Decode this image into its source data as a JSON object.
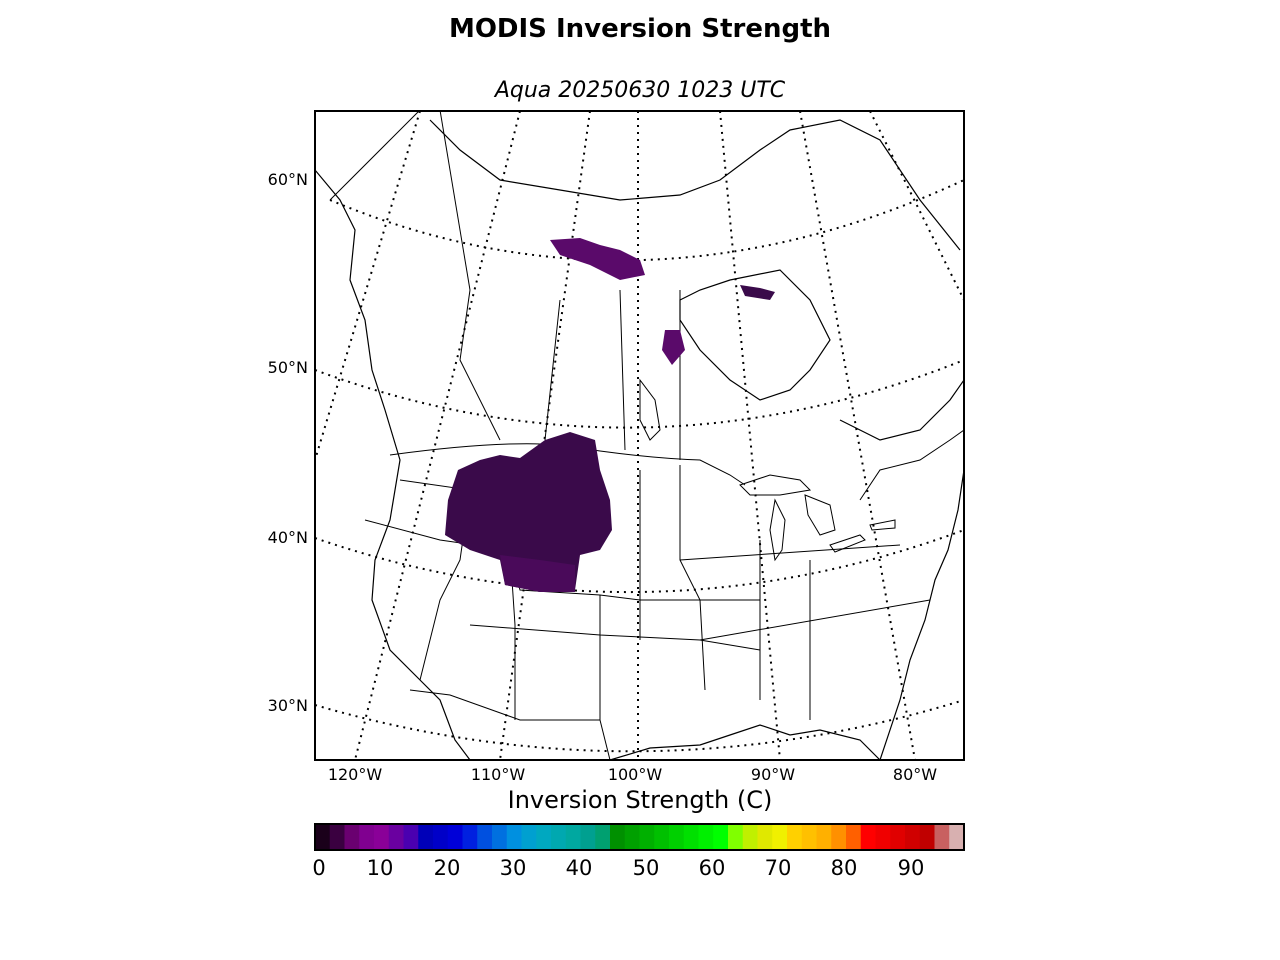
{
  "title": "MODIS Inversion Strength",
  "subtitle": "Aqua 20250630 1023 UTC",
  "map": {
    "projection": "conic",
    "latitude_labels": [
      "60°N",
      "50°N",
      "40°N",
      "30°N"
    ],
    "longitude_labels": [
      "120°W",
      "110°W",
      "100°W",
      "90°W",
      "80°W"
    ],
    "data_color_dominant": "#3a0a4a",
    "data_regions": [
      "Northern Rockies / Wyoming / Colorado",
      "Northern Manitoba / Saskatchewan",
      "Hudson Bay coast"
    ]
  },
  "colorbar": {
    "label": "Inversion Strength (C)",
    "ticks": [
      "0",
      "10",
      "20",
      "30",
      "40",
      "50",
      "60",
      "70",
      "80",
      "90"
    ],
    "range": [
      0,
      98
    ],
    "colors": [
      "#1a001a",
      "#3a0040",
      "#6a0070",
      "#800090",
      "#8a0098",
      "#6a00a0",
      "#4a00b0",
      "#0000b8",
      "#0000c8",
      "#0000d8",
      "#0020e0",
      "#0050e0",
      "#0070e0",
      "#0090e0",
      "#00a0d0",
      "#00a8c0",
      "#00a8b0",
      "#00a8a0",
      "#00a090",
      "#00a070",
      "#009000",
      "#00a000",
      "#00b000",
      "#00c000",
      "#00d000",
      "#00e000",
      "#00f000",
      "#00ff00",
      "#80ff00",
      "#c0f000",
      "#e0e800",
      "#f0f000",
      "#ffd000",
      "#ffc000",
      "#ffb000",
      "#ff9000",
      "#ff6000",
      "#ff0000",
      "#f00000",
      "#e00000",
      "#d00000",
      "#c00000",
      "#c86060",
      "#d8b0b0"
    ]
  }
}
